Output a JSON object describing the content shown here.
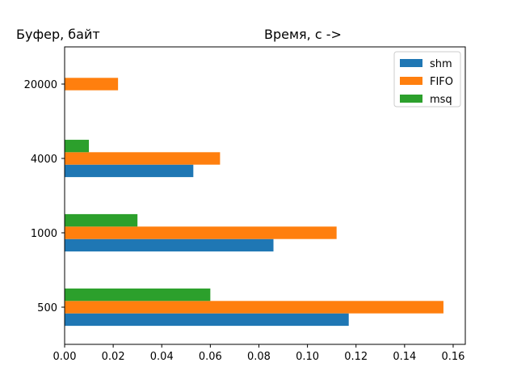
{
  "chart_data": {
    "type": "bar",
    "orientation": "horizontal",
    "ylabel": "Буфер, байт",
    "xlabel": "Время, с ->",
    "categories": [
      "500",
      "1000",
      "4000",
      "20000"
    ],
    "series": [
      {
        "name": "shm",
        "color": "#1f77b4",
        "values": [
          0.117,
          0.086,
          0.053,
          null
        ]
      },
      {
        "name": "FIFO",
        "color": "#ff7f0e",
        "values": [
          0.156,
          0.112,
          0.064,
          0.022
        ]
      },
      {
        "name": "msq",
        "color": "#2ca02c",
        "values": [
          0.06,
          0.03,
          0.01,
          null
        ]
      }
    ],
    "xlim": [
      0,
      0.165
    ],
    "xticks": [
      0.0,
      0.02,
      0.04,
      0.06,
      0.08,
      0.1,
      0.12,
      0.14,
      0.16
    ],
    "xtick_labels": [
      "0.00",
      "0.02",
      "0.04",
      "0.06",
      "0.08",
      "0.10",
      "0.12",
      "0.14",
      "0.16"
    ],
    "legend": "top-right",
    "grid": false
  }
}
